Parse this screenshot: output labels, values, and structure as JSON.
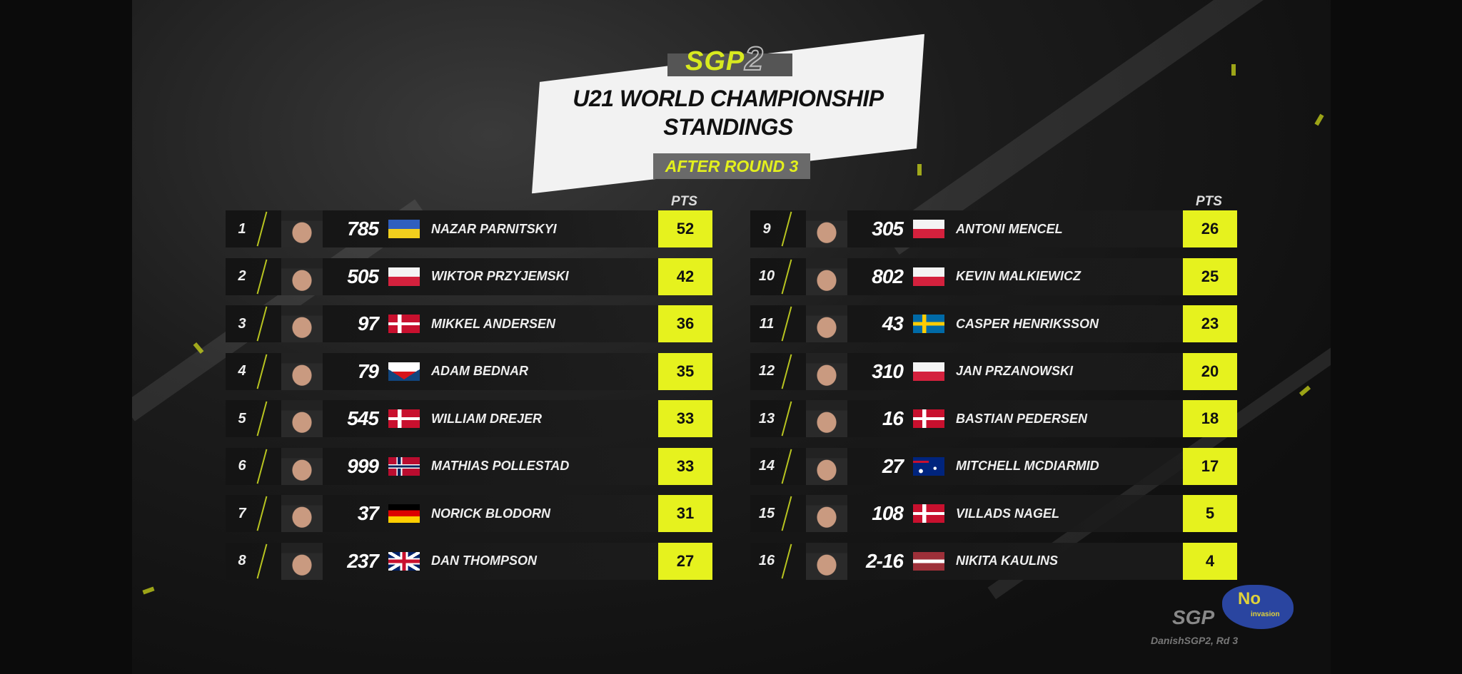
{
  "header": {
    "logo": "SGP",
    "logo_superscript": "2",
    "title_line1": "U21 WORLD CHAMPIONSHIP",
    "title_line2": "STANDINGS",
    "subtitle": "AFTER ROUND 3",
    "pts_label": "PTS"
  },
  "colors": {
    "accent": "#e6f21e",
    "background": "#1a1a1a"
  },
  "standings": [
    {
      "pos": "1",
      "number": "785",
      "flag": "ukraine",
      "name": "NAZAR PARNITSKYI",
      "pts": "52"
    },
    {
      "pos": "2",
      "number": "505",
      "flag": "poland",
      "name": "WIKTOR PRZYJEMSKI",
      "pts": "42"
    },
    {
      "pos": "3",
      "number": "97",
      "flag": "denmark",
      "name": "MIKKEL ANDERSEN",
      "pts": "36"
    },
    {
      "pos": "4",
      "number": "79",
      "flag": "czechia",
      "name": "ADAM BEDNAR",
      "pts": "35"
    },
    {
      "pos": "5",
      "number": "545",
      "flag": "denmark",
      "name": "WILLIAM DREJER",
      "pts": "33"
    },
    {
      "pos": "6",
      "number": "999",
      "flag": "norway",
      "name": "MATHIAS POLLESTAD",
      "pts": "33"
    },
    {
      "pos": "7",
      "number": "37",
      "flag": "germany",
      "name": "NORICK BLODORN",
      "pts": "31"
    },
    {
      "pos": "8",
      "number": "237",
      "flag": "uk",
      "name": "DAN THOMPSON",
      "pts": "27"
    },
    {
      "pos": "9",
      "number": "305",
      "flag": "poland",
      "name": "ANTONI MENCEL",
      "pts": "26"
    },
    {
      "pos": "10",
      "number": "802",
      "flag": "poland",
      "name": "KEVIN MALKIEWICZ",
      "pts": "25"
    },
    {
      "pos": "11",
      "number": "43",
      "flag": "sweden",
      "name": "CASPER HENRIKSSON",
      "pts": "23"
    },
    {
      "pos": "12",
      "number": "310",
      "flag": "poland",
      "name": "JAN PRZANOWSKI",
      "pts": "20"
    },
    {
      "pos": "13",
      "number": "16",
      "flag": "denmark",
      "name": "BASTIAN PEDERSEN",
      "pts": "18"
    },
    {
      "pos": "14",
      "number": "27",
      "flag": "australia",
      "name": "MITCHELL MCDIARMID",
      "pts": "17"
    },
    {
      "pos": "15",
      "number": "108",
      "flag": "denmark",
      "name": "VILLADS NAGEL",
      "pts": "5"
    },
    {
      "pos": "16",
      "number": "2-16",
      "flag": "latvia",
      "name": "NIKITA KAULINS",
      "pts": "4"
    }
  ],
  "watermark": {
    "logo": "SGP",
    "caption": "DanishSGP2, Rd 3",
    "badge_line1": "No",
    "badge_line2": "invasion"
  }
}
